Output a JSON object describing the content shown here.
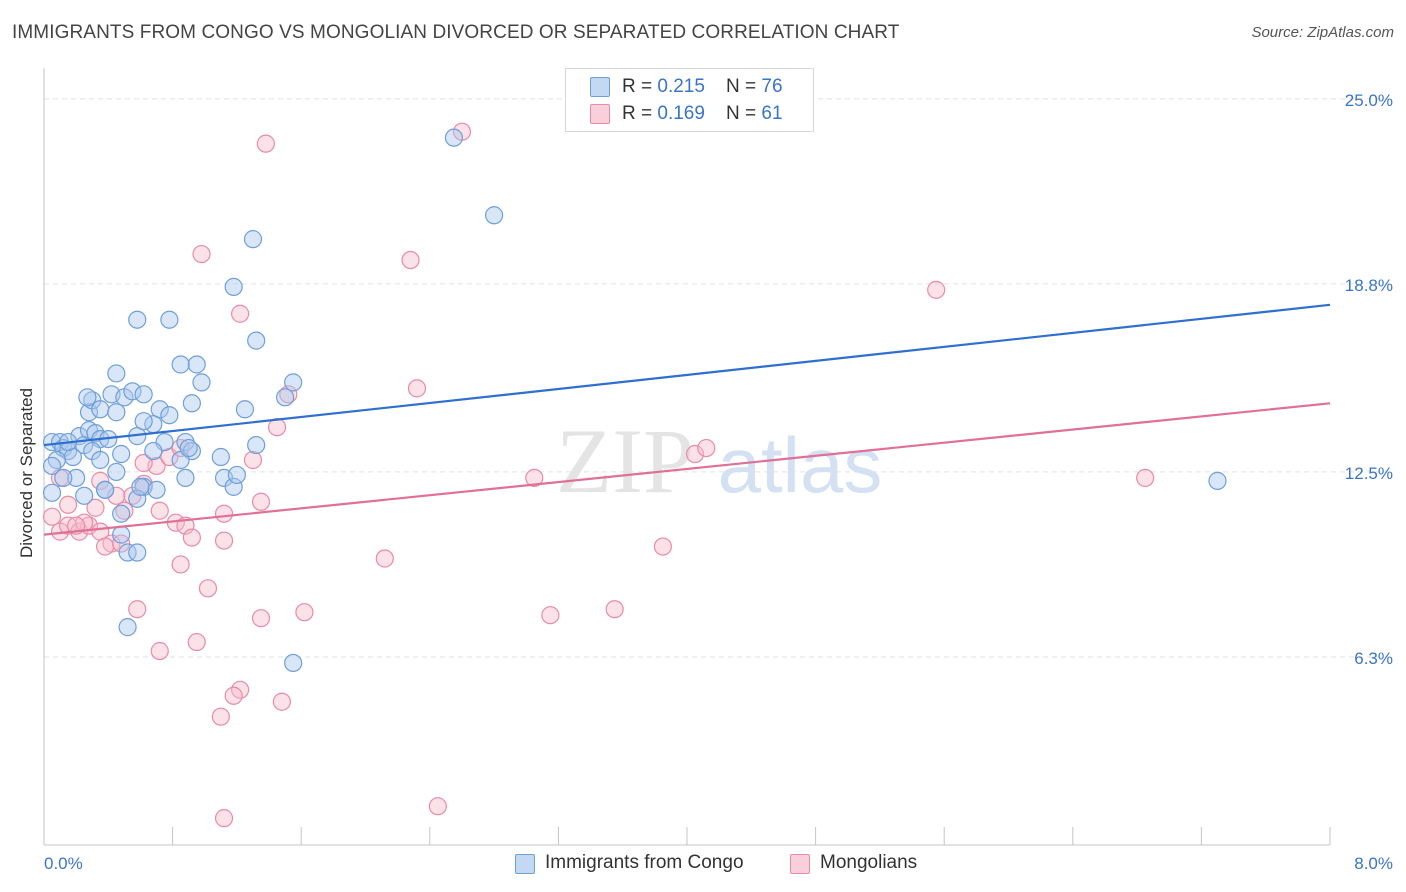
{
  "title": "IMMIGRANTS FROM CONGO VS MONGOLIAN DIVORCED OR SEPARATED CORRELATION CHART",
  "source": "Source: ZipAtlas.com",
  "watermark": {
    "zip": "ZIP",
    "atlas": "atlas"
  },
  "legend": {
    "rows": [
      {
        "r_label": "R = ",
        "r_value": "0.215",
        "n_label": "N = ",
        "n_value": "76"
      },
      {
        "r_label": "R = ",
        "r_value": "0.169",
        "n_label": "N = ",
        "n_value": "61"
      }
    ]
  },
  "colors": {
    "blue_fill": "#aac8ee",
    "blue_stroke": "#6f9fd9",
    "blue_line": "#2e6fd0",
    "pink_fill": "#f6bccd",
    "pink_stroke": "#e98ba8",
    "pink_line": "#e07096",
    "axis_label": "#3a74c8",
    "grid": "#e2e2e2"
  },
  "chart_data": {
    "type": "scatter",
    "title": "IMMIGRANTS FROM CONGO VS MONGOLIAN DIVORCED OR SEPARATED CORRELATION CHART",
    "xlabel": "",
    "ylabel": "Divorced or Separated",
    "xlim": [
      0,
      8
    ],
    "ylim": [
      0,
      25.9
    ],
    "x_tick_labels": [
      "0.0%",
      "8.0%"
    ],
    "y_ticks": [
      6.3,
      12.5,
      18.8,
      25.0
    ],
    "y_tick_labels": [
      "6.3%",
      "12.5%",
      "18.8%",
      "25.0%"
    ],
    "grid": true,
    "legend_position": "top-center",
    "series": [
      {
        "name": "Immigrants from Congo",
        "R": 0.215,
        "N": 76,
        "trend": {
          "x": [
            0,
            8
          ],
          "y": [
            13.4,
            18.1
          ]
        },
        "points": [
          [
            0.05,
            13.5
          ],
          [
            0.1,
            13.5
          ],
          [
            0.12,
            13.3
          ],
          [
            0.15,
            13.2
          ],
          [
            0.18,
            13.0
          ],
          [
            0.08,
            12.9
          ],
          [
            0.05,
            12.7
          ],
          [
            0.22,
            13.7
          ],
          [
            0.25,
            13.4
          ],
          [
            0.28,
            13.9
          ],
          [
            0.32,
            13.8
          ],
          [
            0.35,
            13.6
          ],
          [
            0.28,
            14.5
          ],
          [
            0.3,
            14.9
          ],
          [
            0.27,
            15.0
          ],
          [
            0.35,
            14.6
          ],
          [
            0.45,
            14.5
          ],
          [
            0.42,
            15.1
          ],
          [
            0.5,
            15.0
          ],
          [
            0.55,
            15.2
          ],
          [
            0.62,
            15.1
          ],
          [
            0.72,
            14.6
          ],
          [
            0.68,
            14.1
          ],
          [
            0.78,
            14.4
          ],
          [
            0.58,
            13.7
          ],
          [
            0.75,
            13.5
          ],
          [
            0.88,
            13.5
          ],
          [
            0.92,
            13.2
          ],
          [
            0.85,
            12.9
          ],
          [
            0.68,
            13.2
          ],
          [
            0.48,
            13.1
          ],
          [
            0.3,
            13.2
          ],
          [
            0.45,
            12.5
          ],
          [
            0.2,
            12.3
          ],
          [
            0.12,
            12.3
          ],
          [
            0.38,
            11.9
          ],
          [
            0.62,
            12.0
          ],
          [
            0.58,
            11.6
          ],
          [
            0.88,
            12.3
          ],
          [
            1.12,
            12.3
          ],
          [
            1.18,
            12.0
          ],
          [
            1.32,
            13.4
          ],
          [
            1.25,
            14.6
          ],
          [
            1.5,
            15.0
          ],
          [
            1.55,
            15.5
          ],
          [
            0.92,
            14.8
          ],
          [
            0.98,
            15.5
          ],
          [
            0.95,
            16.1
          ],
          [
            0.85,
            16.1
          ],
          [
            0.45,
            15.8
          ],
          [
            0.58,
            17.6
          ],
          [
            0.78,
            17.6
          ],
          [
            1.32,
            16.9
          ],
          [
            1.3,
            20.3
          ],
          [
            1.18,
            18.7
          ],
          [
            2.55,
            23.7
          ],
          [
            2.8,
            21.1
          ],
          [
            0.05,
            11.8
          ],
          [
            0.25,
            11.7
          ],
          [
            0.48,
            10.4
          ],
          [
            0.52,
            9.8
          ],
          [
            0.58,
            9.8
          ],
          [
            0.52,
            7.3
          ],
          [
            1.55,
            6.1
          ],
          [
            1.2,
            12.4
          ],
          [
            1.1,
            13.0
          ],
          [
            0.38,
            11.9
          ],
          [
            0.48,
            11.1
          ],
          [
            7.3,
            12.2
          ],
          [
            0.7,
            11.9
          ],
          [
            0.6,
            12.0
          ],
          [
            0.9,
            13.3
          ],
          [
            0.15,
            13.5
          ],
          [
            0.4,
            13.6
          ],
          [
            0.62,
            14.2
          ],
          [
            0.35,
            12.9
          ]
        ]
      },
      {
        "name": "Mongolians",
        "R": 0.169,
        "N": 61,
        "trend": {
          "x": [
            0,
            8
          ],
          "y": [
            10.4,
            14.8
          ]
        },
        "points": [
          [
            0.05,
            11.0
          ],
          [
            0.1,
            10.5
          ],
          [
            0.15,
            10.7
          ],
          [
            0.22,
            10.5
          ],
          [
            0.28,
            10.7
          ],
          [
            0.35,
            10.5
          ],
          [
            0.42,
            10.1
          ],
          [
            0.38,
            10.0
          ],
          [
            0.1,
            12.3
          ],
          [
            0.35,
            12.2
          ],
          [
            0.45,
            11.7
          ],
          [
            0.55,
            11.7
          ],
          [
            0.5,
            11.2
          ],
          [
            0.32,
            11.3
          ],
          [
            0.25,
            10.8
          ],
          [
            0.62,
            12.1
          ],
          [
            0.7,
            12.7
          ],
          [
            0.78,
            13.0
          ],
          [
            0.85,
            13.3
          ],
          [
            0.72,
            11.2
          ],
          [
            0.82,
            10.8
          ],
          [
            0.88,
            10.7
          ],
          [
            0.92,
            10.3
          ],
          [
            0.85,
            9.4
          ],
          [
            1.02,
            8.6
          ],
          [
            0.95,
            6.8
          ],
          [
            0.72,
            6.5
          ],
          [
            0.58,
            7.9
          ],
          [
            1.22,
            5.2
          ],
          [
            1.18,
            5.0
          ],
          [
            1.1,
            4.3
          ],
          [
            1.12,
            0.9
          ],
          [
            0.98,
            19.8
          ],
          [
            1.22,
            17.8
          ],
          [
            1.38,
            23.5
          ],
          [
            1.52,
            15.1
          ],
          [
            1.45,
            14.0
          ],
          [
            1.3,
            12.9
          ],
          [
            1.12,
            11.1
          ],
          [
            1.35,
            11.5
          ],
          [
            1.12,
            10.2
          ],
          [
            1.35,
            7.6
          ],
          [
            1.48,
            4.8
          ],
          [
            1.62,
            7.8
          ],
          [
            2.12,
            9.6
          ],
          [
            2.32,
            15.3
          ],
          [
            2.28,
            19.6
          ],
          [
            2.6,
            23.9
          ],
          [
            2.45,
            1.3
          ],
          [
            3.05,
            12.3
          ],
          [
            3.15,
            7.7
          ],
          [
            3.55,
            7.9
          ],
          [
            3.85,
            10.0
          ],
          [
            4.05,
            13.1
          ],
          [
            4.12,
            13.3
          ],
          [
            5.55,
            18.6
          ],
          [
            6.85,
            12.3
          ],
          [
            0.62,
            12.8
          ],
          [
            0.48,
            10.1
          ],
          [
            0.2,
            10.7
          ],
          [
            0.15,
            11.4
          ]
        ]
      }
    ]
  },
  "bottom_legend": [
    "Immigrants from Congo",
    "Mongolians"
  ]
}
